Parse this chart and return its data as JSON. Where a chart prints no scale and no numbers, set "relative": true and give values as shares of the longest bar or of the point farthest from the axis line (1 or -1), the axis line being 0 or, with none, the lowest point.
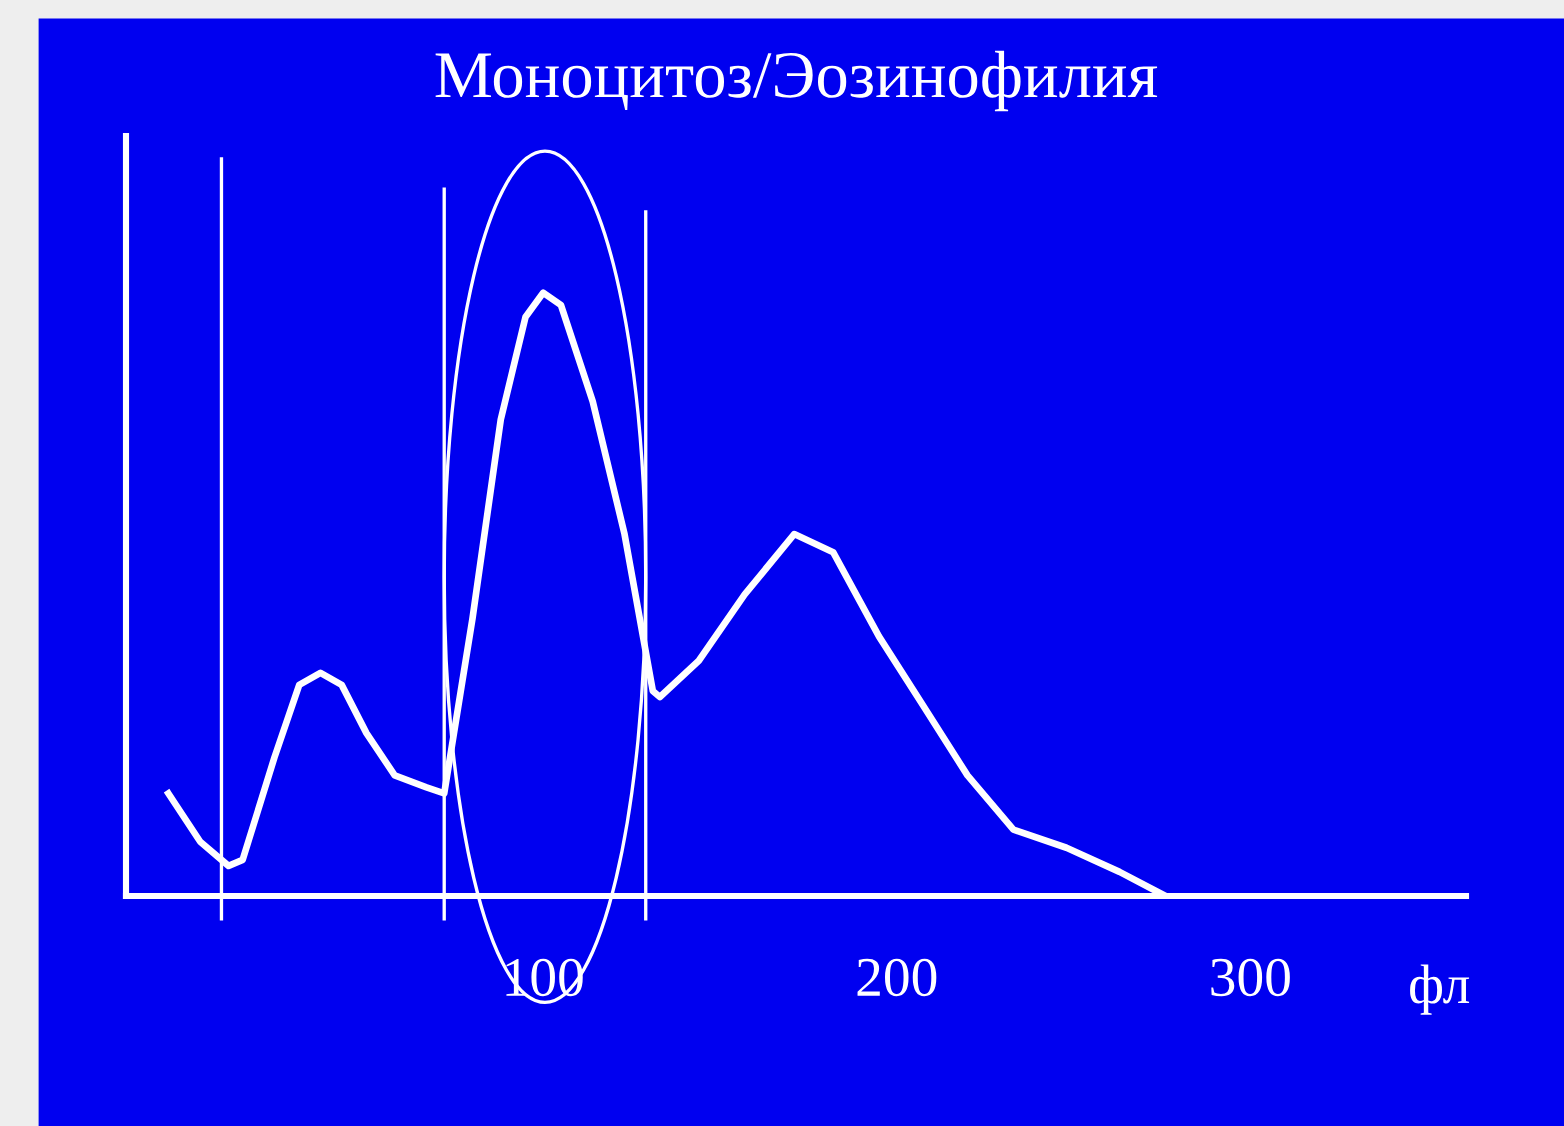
{
  "chart_data": {
    "type": "line",
    "title": "Моноцитоз/Эозинофилия",
    "xlabel": "фл",
    "relative": true,
    "x": [
      -6,
      3,
      11,
      15,
      24,
      31,
      37,
      43,
      50,
      58,
      67,
      72,
      80,
      88,
      95,
      100,
      105,
      114,
      123,
      131,
      133,
      144,
      157,
      171,
      182,
      195,
      207,
      220,
      233,
      248,
      263,
      276
    ],
    "series": [
      {
        "color": "#ffffff",
        "values": [
          0.17,
          0.09,
          0.05,
          0.06,
          0.23,
          0.35,
          0.37,
          0.35,
          0.27,
          0.2,
          0.18,
          0.17,
          0.46,
          0.79,
          0.96,
          1.0,
          0.98,
          0.82,
          0.6,
          0.34,
          0.33,
          0.39,
          0.5,
          0.6,
          0.57,
          0.43,
          0.32,
          0.2,
          0.11,
          0.08,
          0.04,
          0.0
        ]
      }
    ],
    "xlim": [
      -18,
      361
    ],
    "xticks": [
      100,
      200,
      300
    ],
    "ref_lines": [
      {
        "axis": "x",
        "value": 9,
        "color": "#ffffff"
      },
      {
        "axis": "x",
        "value": 72,
        "color": "#ffffff"
      },
      {
        "axis": "x",
        "value": 129,
        "color": "#ffffff"
      }
    ],
    "grid": false,
    "legend": false,
    "tick_labels": "x"
  }
}
